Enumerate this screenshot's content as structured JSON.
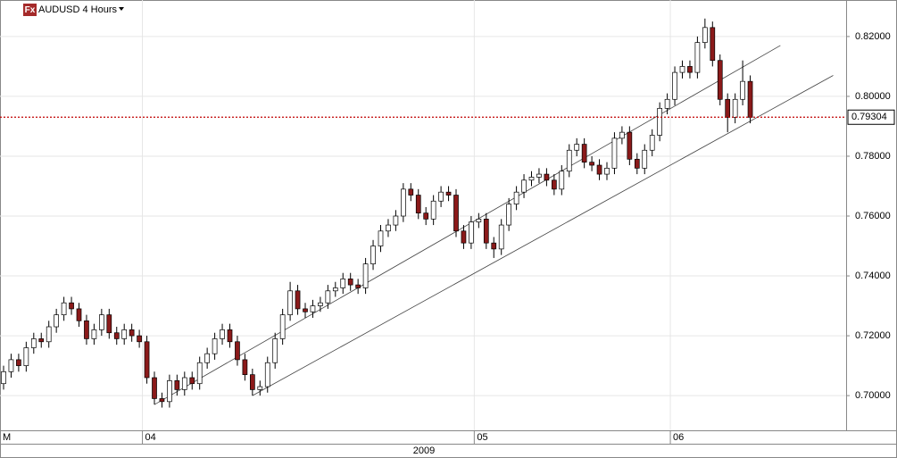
{
  "chart_data": {
    "type": "candlestick",
    "logo": "Fx",
    "title": "AUDUSD 4 Hours",
    "period": "M",
    "year": "2009",
    "ylim": [
      0.6884,
      0.8322
    ],
    "yticks": [
      {
        "value": 0.7,
        "label": "0.70000"
      },
      {
        "value": 0.72,
        "label": "0.72000"
      },
      {
        "value": 0.74,
        "label": "0.74000"
      },
      {
        "value": 0.76,
        "label": "0.76000"
      },
      {
        "value": 0.78,
        "label": "0.78000"
      },
      {
        "value": 0.8,
        "label": "0.80000"
      },
      {
        "value": 0.82,
        "label": "0.82000"
      }
    ],
    "month_labels": [
      {
        "value": 19,
        "label": "04"
      },
      {
        "value": 63,
        "label": "05"
      },
      {
        "value": 89,
        "label": "06"
      }
    ],
    "price_line": {
      "value": 0.79304,
      "label": "0.79304",
      "color": "#c00000"
    },
    "up_color": "#ffffff",
    "down_color": "#8b1a1a",
    "trendlines": [
      {
        "x": [
          20,
          103
        ],
        "y": [
          0.697,
          0.817
        ]
      },
      {
        "x": [
          33,
          110
        ],
        "y": [
          0.7,
          0.807
        ]
      }
    ],
    "open": [
      0.704,
      0.708,
      0.712,
      0.71,
      0.716,
      0.719,
      0.718,
      0.723,
      0.727,
      0.731,
      0.729,
      0.725,
      0.719,
      0.722,
      0.727,
      0.721,
      0.719,
      0.722,
      0.72,
      0.718,
      0.706,
      0.699,
      0.698,
      0.705,
      0.702,
      0.706,
      0.704,
      0.711,
      0.714,
      0.719,
      0.722,
      0.718,
      0.712,
      0.707,
      0.702,
      0.703,
      0.711,
      0.719,
      0.727,
      0.735,
      0.729,
      0.728,
      0.73,
      0.731,
      0.735,
      0.736,
      0.739,
      0.737,
      0.736,
      0.744,
      0.75,
      0.755,
      0.757,
      0.76,
      0.769,
      0.767,
      0.761,
      0.759,
      0.765,
      0.768,
      0.767,
      0.755,
      0.751,
      0.758,
      0.759,
      0.751,
      0.749,
      0.757,
      0.764,
      0.768,
      0.772,
      0.773,
      0.774,
      0.772,
      0.769,
      0.775,
      0.782,
      0.784,
      0.778,
      0.777,
      0.774,
      0.776,
      0.786,
      0.788,
      0.779,
      0.776,
      0.782,
      0.787,
      0.796,
      0.799,
      0.808,
      0.81,
      0.808,
      0.818,
      0.823,
      0.812,
      0.799,
      0.793,
      0.799,
      0.805
    ],
    "high": [
      0.71,
      0.714,
      0.714,
      0.718,
      0.721,
      0.721,
      0.725,
      0.729,
      0.733,
      0.733,
      0.731,
      0.727,
      0.724,
      0.729,
      0.729,
      0.723,
      0.724,
      0.724,
      0.722,
      0.72,
      0.708,
      0.701,
      0.707,
      0.707,
      0.708,
      0.708,
      0.713,
      0.716,
      0.721,
      0.724,
      0.724,
      0.72,
      0.714,
      0.709,
      0.705,
      0.713,
      0.721,
      0.729,
      0.738,
      0.737,
      0.731,
      0.732,
      0.733,
      0.737,
      0.738,
      0.741,
      0.741,
      0.739,
      0.746,
      0.752,
      0.757,
      0.759,
      0.762,
      0.771,
      0.771,
      0.769,
      0.763,
      0.767,
      0.77,
      0.77,
      0.769,
      0.757,
      0.76,
      0.761,
      0.761,
      0.753,
      0.759,
      0.766,
      0.77,
      0.774,
      0.775,
      0.776,
      0.776,
      0.774,
      0.777,
      0.784,
      0.786,
      0.786,
      0.78,
      0.779,
      0.778,
      0.788,
      0.79,
      0.79,
      0.781,
      0.784,
      0.789,
      0.798,
      0.801,
      0.81,
      0.812,
      0.812,
      0.82,
      0.826,
      0.825,
      0.814,
      0.801,
      0.801,
      0.812,
      0.807
    ],
    "low": [
      0.702,
      0.706,
      0.708,
      0.708,
      0.714,
      0.716,
      0.716,
      0.721,
      0.725,
      0.727,
      0.723,
      0.717,
      0.717,
      0.72,
      0.719,
      0.717,
      0.717,
      0.718,
      0.716,
      0.704,
      0.697,
      0.696,
      0.696,
      0.7,
      0.7,
      0.702,
      0.702,
      0.709,
      0.712,
      0.717,
      0.716,
      0.71,
      0.705,
      0.7,
      0.7,
      0.701,
      0.709,
      0.717,
      0.725,
      0.727,
      0.726,
      0.726,
      0.728,
      0.729,
      0.733,
      0.734,
      0.735,
      0.734,
      0.734,
      0.742,
      0.748,
      0.753,
      0.755,
      0.758,
      0.765,
      0.759,
      0.757,
      0.757,
      0.763,
      0.765,
      0.753,
      0.749,
      0.749,
      0.756,
      0.749,
      0.746,
      0.747,
      0.755,
      0.762,
      0.766,
      0.77,
      0.771,
      0.77,
      0.767,
      0.767,
      0.773,
      0.78,
      0.776,
      0.775,
      0.772,
      0.772,
      0.774,
      0.784,
      0.777,
      0.774,
      0.774,
      0.78,
      0.785,
      0.794,
      0.797,
      0.806,
      0.806,
      0.806,
      0.816,
      0.81,
      0.797,
      0.788,
      0.791,
      0.797,
      0.791
    ],
    "close": [
      0.708,
      0.712,
      0.71,
      0.716,
      0.719,
      0.718,
      0.723,
      0.727,
      0.731,
      0.729,
      0.725,
      0.719,
      0.722,
      0.727,
      0.721,
      0.719,
      0.722,
      0.72,
      0.718,
      0.706,
      0.699,
      0.698,
      0.705,
      0.702,
      0.706,
      0.704,
      0.711,
      0.714,
      0.719,
      0.722,
      0.718,
      0.712,
      0.707,
      0.702,
      0.703,
      0.711,
      0.719,
      0.727,
      0.735,
      0.729,
      0.728,
      0.73,
      0.731,
      0.735,
      0.736,
      0.739,
      0.737,
      0.736,
      0.744,
      0.75,
      0.755,
      0.757,
      0.76,
      0.769,
      0.767,
      0.761,
      0.759,
      0.765,
      0.768,
      0.767,
      0.755,
      0.751,
      0.758,
      0.759,
      0.751,
      0.749,
      0.757,
      0.764,
      0.768,
      0.772,
      0.773,
      0.774,
      0.772,
      0.769,
      0.775,
      0.782,
      0.784,
      0.778,
      0.777,
      0.774,
      0.776,
      0.786,
      0.788,
      0.779,
      0.776,
      0.782,
      0.787,
      0.796,
      0.799,
      0.808,
      0.81,
      0.808,
      0.818,
      0.823,
      0.812,
      0.799,
      0.793,
      0.799,
      0.805,
      0.793
    ]
  }
}
